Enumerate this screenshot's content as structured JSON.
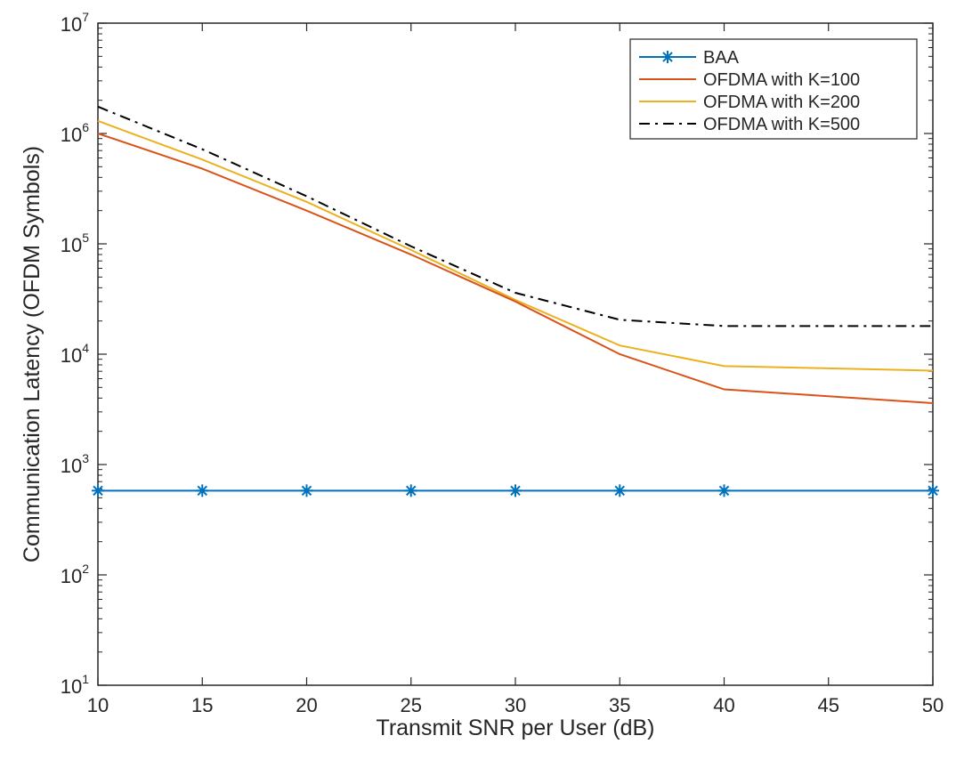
{
  "chart_data": {
    "type": "line",
    "title": "",
    "xlabel": "Transmit SNR per User (dB)",
    "ylabel": "Communication Latency (OFDM Symbols)",
    "xlim": [
      10,
      50
    ],
    "ylim": [
      10,
      10000000
    ],
    "yscale": "log",
    "grid": false,
    "legend_position": "top-right",
    "x_ticks": [
      10,
      15,
      20,
      25,
      30,
      35,
      40,
      45,
      50
    ],
    "y_ticks": [
      {
        "value": 10,
        "base": "10",
        "exp": "1"
      },
      {
        "value": 100,
        "base": "10",
        "exp": "2"
      },
      {
        "value": 1000,
        "base": "10",
        "exp": "3"
      },
      {
        "value": 10000,
        "base": "10",
        "exp": "4"
      },
      {
        "value": 100000,
        "base": "10",
        "exp": "5"
      },
      {
        "value": 1000000,
        "base": "10",
        "exp": "6"
      },
      {
        "value": 10000000,
        "base": "10",
        "exp": "7"
      }
    ],
    "series": [
      {
        "name": "BAA",
        "color": "#0072BD",
        "style": "solid",
        "marker": "asterisk",
        "x": [
          10,
          15,
          20,
          25,
          30,
          35,
          40,
          50
        ],
        "values": [
          580,
          580,
          580,
          580,
          580,
          580,
          580,
          580
        ]
      },
      {
        "name": "OFDMA with K=100",
        "color": "#D95319",
        "style": "solid",
        "marker": "none",
        "x": [
          10,
          15,
          20,
          25,
          30,
          35,
          40,
          50
        ],
        "values": [
          1000000,
          480000,
          200000,
          80000,
          30000,
          10000,
          4800,
          3600
        ]
      },
      {
        "name": "OFDMA with K=200",
        "color": "#EDB120",
        "style": "solid",
        "marker": "none",
        "x": [
          10,
          15,
          20,
          25,
          30,
          35,
          40,
          50
        ],
        "values": [
          1300000,
          580000,
          240000,
          88000,
          31000,
          12000,
          7800,
          7100
        ]
      },
      {
        "name": "OFDMA with K=500",
        "color": "#000000",
        "style": "dashdot",
        "marker": "none",
        "x": [
          10,
          15,
          20,
          25,
          30,
          35,
          40,
          50
        ],
        "values": [
          1750000,
          720000,
          270000,
          95000,
          36000,
          20500,
          18000,
          18000
        ]
      }
    ]
  }
}
